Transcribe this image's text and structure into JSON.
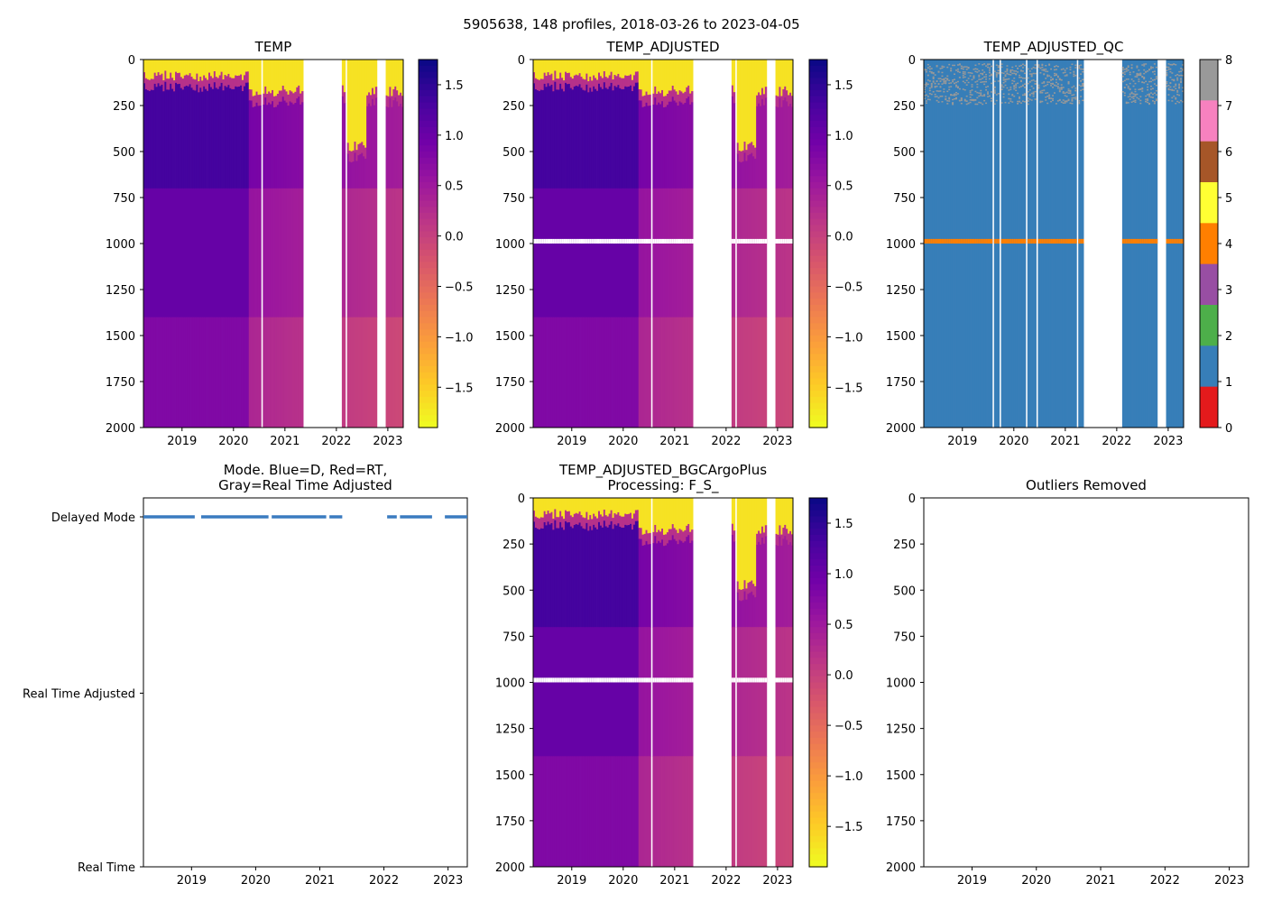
{
  "figure": {
    "suptitle": "5905638, 148 profiles, 2018-03-26 to 2023-04-05"
  },
  "colors": {
    "plasma": [
      "#0d0887",
      "#46039f",
      "#7201a8",
      "#9c179e",
      "#bd3786",
      "#d8576b",
      "#ed7953",
      "#fb9f3a",
      "#fdca26",
      "#f0f921"
    ],
    "qc": [
      "#e41a1c",
      "#377eb8",
      "#4daf4a",
      "#984ea3",
      "#ff7f00",
      "#ffff33",
      "#a65628",
      "#f781bf",
      "#999999"
    ],
    "mode_marker": "#3a7bc0",
    "axes": "#000000"
  },
  "chart_data": [
    {
      "id": "temp",
      "type": "heatmap",
      "title": "TEMP",
      "xlim": [
        2018.25,
        2023.3
      ],
      "ylim": [
        2000,
        0
      ],
      "xticks": [
        "2019",
        "2020",
        "2021",
        "2022",
        "2023"
      ],
      "xtick_values": [
        2019,
        2020,
        2021,
        2022,
        2023
      ],
      "yticks": [
        "0",
        "250",
        "500",
        "750",
        "1000",
        "1250",
        "1500",
        "1750",
        "2000"
      ],
      "ytick_values": [
        0,
        250,
        500,
        750,
        1000,
        1250,
        1500,
        1750,
        2000
      ],
      "colorbar": {
        "range": [
          -1.9,
          1.75
        ],
        "ticks": [
          "1.5",
          "1.0",
          "0.5",
          "0.0",
          "−0.5",
          "−1.0",
          "−1.5"
        ],
        "tick_values": [
          1.5,
          1.0,
          0.5,
          0.0,
          -0.5,
          -1.0,
          -1.5
        ],
        "cmap": "plasma_r"
      },
      "data_gaps_years": [
        [
          2021.35,
          2022.1
        ],
        [
          2022.8,
          2022.95
        ]
      ],
      "qc_flag4_band_m": null
    },
    {
      "id": "temp_adjusted",
      "type": "heatmap",
      "title": "TEMP_ADJUSTED",
      "xlim": [
        2018.25,
        2023.3
      ],
      "ylim": [
        2000,
        0
      ],
      "xticks": [
        "2019",
        "2020",
        "2021",
        "2022",
        "2023"
      ],
      "xtick_values": [
        2019,
        2020,
        2021,
        2022,
        2023
      ],
      "yticks": [
        "0",
        "250",
        "500",
        "750",
        "1000",
        "1250",
        "1500",
        "1750",
        "2000"
      ],
      "ytick_values": [
        0,
        250,
        500,
        750,
        1000,
        1250,
        1500,
        1750,
        2000
      ],
      "colorbar": {
        "range": [
          -1.9,
          1.75
        ],
        "ticks": [
          "1.5",
          "1.0",
          "0.5",
          "0.0",
          "−0.5",
          "−1.0",
          "−1.5"
        ],
        "tick_values": [
          1.5,
          1.0,
          0.5,
          0.0,
          -0.5,
          -1.0,
          -1.5
        ],
        "cmap": "plasma_r"
      },
      "data_gaps_years": [
        [
          2021.35,
          2022.1
        ],
        [
          2022.8,
          2022.95
        ]
      ],
      "qc_flag4_band_m": [
        975,
        1000
      ]
    },
    {
      "id": "temp_adjusted_qc",
      "type": "heatmap",
      "title": "TEMP_ADJUSTED_QC",
      "xlim": [
        2018.25,
        2023.3
      ],
      "ylim": [
        2000,
        0
      ],
      "xticks": [
        "2019",
        "2020",
        "2021",
        "2022",
        "2023"
      ],
      "xtick_values": [
        2019,
        2020,
        2021,
        2022,
        2023
      ],
      "yticks": [
        "0",
        "250",
        "500",
        "750",
        "1000",
        "1250",
        "1500",
        "1750",
        "2000"
      ],
      "ytick_values": [
        0,
        250,
        500,
        750,
        1000,
        1250,
        1500,
        1750,
        2000
      ],
      "colorbar": {
        "range": [
          0,
          8
        ],
        "ticks": [
          "8",
          "7",
          "6",
          "5",
          "4",
          "3",
          "2",
          "1",
          "0"
        ],
        "tick_values": [
          8,
          7,
          6,
          5,
          4,
          3,
          2,
          1,
          0
        ],
        "cmap": "qc"
      },
      "data_gaps_years": [
        [
          2021.35,
          2022.1
        ],
        [
          2022.8,
          2022.95
        ]
      ],
      "dominant_flag": 1,
      "qc_flag4_band_m": [
        975,
        1000
      ]
    },
    {
      "id": "mode",
      "type": "scatter",
      "title": "Mode. Blue=D, Red=RT,",
      "title_line2": "Gray=Real Time Adjusted",
      "xlim": [
        2018.25,
        2023.3
      ],
      "xticks": [
        "2019",
        "2020",
        "2021",
        "2022",
        "2023"
      ],
      "xtick_values": [
        2019,
        2020,
        2021,
        2022,
        2023
      ],
      "ycategories": [
        "Delayed Mode",
        "Real Time Adjusted",
        "Real Time"
      ],
      "series": [
        {
          "name": "D",
          "mode": "Delayed Mode",
          "segments_years": [
            [
              2018.25,
              2019.05
            ],
            [
              2019.15,
              2020.2
            ],
            [
              2020.25,
              2021.1
            ],
            [
              2021.15,
              2021.35
            ],
            [
              2022.05,
              2022.2
            ],
            [
              2022.25,
              2022.75
            ],
            [
              2022.95,
              2023.3
            ]
          ]
        }
      ]
    },
    {
      "id": "temp_adjusted_bgc",
      "type": "heatmap",
      "title": "TEMP_ADJUSTED_BGCArgoPlus",
      "title_line2": "Processing: F_S_",
      "xlim": [
        2018.25,
        2023.3
      ],
      "ylim": [
        2000,
        0
      ],
      "xticks": [
        "2019",
        "2020",
        "2021",
        "2022",
        "2023"
      ],
      "xtick_values": [
        2019,
        2020,
        2021,
        2022,
        2023
      ],
      "yticks": [
        "0",
        "250",
        "500",
        "750",
        "1000",
        "1250",
        "1500",
        "1750",
        "2000"
      ],
      "ytick_values": [
        0,
        250,
        500,
        750,
        1000,
        1250,
        1500,
        1750,
        2000
      ],
      "colorbar": {
        "range": [
          -1.9,
          1.75
        ],
        "ticks": [
          "1.5",
          "1.0",
          "0.5",
          "0.0",
          "−0.5",
          "−1.0",
          "−1.5"
        ],
        "tick_values": [
          1.5,
          1.0,
          0.5,
          0.0,
          -0.5,
          -1.0,
          -1.5
        ],
        "cmap": "plasma_r"
      },
      "data_gaps_years": [
        [
          2021.35,
          2022.1
        ],
        [
          2022.8,
          2022.95
        ]
      ],
      "qc_flag4_band_m": [
        975,
        1000
      ]
    },
    {
      "id": "outliers",
      "type": "scatter",
      "title": "Outliers Removed",
      "xlim": [
        2018.25,
        2023.3
      ],
      "ylim": [
        2000,
        0
      ],
      "xticks": [
        "2019",
        "2020",
        "2021",
        "2022",
        "2023"
      ],
      "xtick_values": [
        2019,
        2020,
        2021,
        2022,
        2023
      ],
      "yticks": [
        "0",
        "250",
        "500",
        "750",
        "1000",
        "1250",
        "1500",
        "1750",
        "2000"
      ],
      "ytick_values": [
        0,
        250,
        500,
        750,
        1000,
        1250,
        1500,
        1750,
        2000
      ],
      "series": []
    }
  ]
}
